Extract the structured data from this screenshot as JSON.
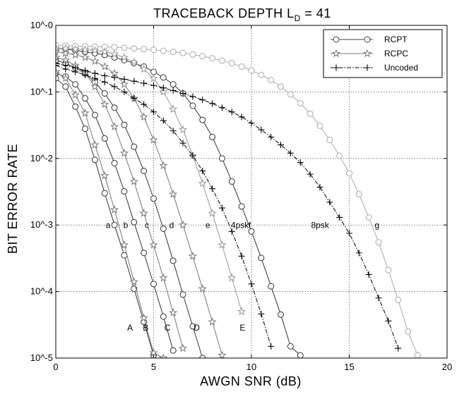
{
  "chart_data": {
    "type": "line",
    "title_prefix": "TRACEBACK DEPTH  L",
    "title_sub": "D",
    "title_suffix": " = 41",
    "xlabel": "AWGN SNR (dB)",
    "ylabel": "BIT ERROR RATE",
    "xlim": [
      0,
      20
    ],
    "ylim": [
      1e-05,
      1
    ],
    "yscale": "log",
    "grid": true,
    "legend_position": "top-right",
    "x_ticks": [
      {
        "value": 0,
        "label": "0"
      },
      {
        "value": 5,
        "label": "5"
      },
      {
        "value": 10,
        "label": "10"
      },
      {
        "value": 15,
        "label": "15"
      },
      {
        "value": 20,
        "label": "20"
      }
    ],
    "y_ticks": [
      {
        "value": 1,
        "label": "10^-0"
      },
      {
        "value": 0.1,
        "label": "10^-1"
      },
      {
        "value": 0.01,
        "label": "10^-2"
      },
      {
        "value": 0.001,
        "label": "10^-3"
      },
      {
        "value": 0.0001,
        "label": "10^-4"
      },
      {
        "value": 1e-05,
        "label": "10^-5"
      }
    ],
    "legend": [
      {
        "name": "RCPT",
        "marker": "circle",
        "color": "#444444",
        "line": "solid"
      },
      {
        "name": "RCPC",
        "marker": "star",
        "color": "#777777",
        "line": "solid"
      },
      {
        "name": "Uncoded",
        "marker": "plus",
        "color": "#000000",
        "line": "dashdot"
      }
    ],
    "series": [
      {
        "legend": "RCPT",
        "color": "#333333",
        "marker": "circle",
        "line": "solid",
        "x": [
          0,
          0.5,
          1,
          1.5,
          2,
          2.5,
          3,
          3.5,
          4,
          4.5,
          5
        ],
        "y": [
          0.16,
          0.12,
          0.06,
          0.028,
          0.0095,
          0.003,
          0.001,
          0.00035,
          0.00011,
          3.5e-05,
          1.1e-05
        ]
      },
      {
        "legend": "RCPT",
        "color": "#333333",
        "marker": "circle",
        "line": "solid",
        "x": [
          0,
          0.5,
          1,
          1.5,
          2,
          2.5,
          3,
          3.5,
          4,
          4.5,
          5,
          5.5,
          6
        ],
        "y": [
          0.19,
          0.17,
          0.13,
          0.08,
          0.045,
          0.02,
          0.0085,
          0.0032,
          0.0011,
          0.00038,
          0.00013,
          4.2e-05,
          1.3e-05
        ]
      },
      {
        "legend": "RCPT",
        "color": "#333333",
        "marker": "circle",
        "line": "solid",
        "x": [
          0,
          0.5,
          1,
          1.5,
          2,
          2.5,
          3,
          3.5,
          4,
          4.5,
          5,
          5.5,
          6,
          6.5,
          7,
          7.5
        ],
        "y": [
          0.3,
          0.27,
          0.23,
          0.19,
          0.14,
          0.095,
          0.058,
          0.032,
          0.015,
          0.0065,
          0.0025,
          0.00088,
          0.00029,
          9e-05,
          3e-05,
          1e-05
        ]
      },
      {
        "legend": "RCPT",
        "color": "#333333",
        "marker": "circle",
        "line": "solid",
        "x": [
          0,
          0.5,
          1,
          1.5,
          2,
          2.5,
          3,
          3.5,
          4,
          4.5,
          5,
          5.5,
          6,
          6.5,
          7,
          7.5,
          8,
          8.5,
          9,
          9.5,
          10,
          10.5,
          11,
          11.5,
          12,
          12.5
        ],
        "y": [
          0.45,
          0.44,
          0.42,
          0.4,
          0.38,
          0.36,
          0.33,
          0.3,
          0.27,
          0.24,
          0.2,
          0.165,
          0.13,
          0.095,
          0.062,
          0.038,
          0.021,
          0.01,
          0.0045,
          0.0019,
          0.0008,
          0.00032,
          0.00012,
          4.5e-05,
          1.5e-05,
          1.1e-05
        ]
      },
      {
        "legend": "RCPT",
        "color": "#aaaaaa",
        "marker": "circle",
        "line": "solid",
        "x": [
          0,
          0.5,
          1,
          1.5,
          2,
          2.5,
          3,
          3.5,
          4,
          4.5,
          5,
          5.5,
          6,
          6.5,
          7,
          7.5,
          8,
          8.5,
          9,
          9.5,
          10,
          10.5,
          11,
          11.5,
          12,
          12.5,
          13,
          13.5,
          14,
          14.5,
          15,
          15.5,
          16,
          16.5,
          17,
          17.5,
          18,
          18.5
        ],
        "y": [
          0.5,
          0.495,
          0.49,
          0.485,
          0.48,
          0.475,
          0.47,
          0.46,
          0.45,
          0.44,
          0.43,
          0.415,
          0.4,
          0.385,
          0.365,
          0.345,
          0.32,
          0.295,
          0.27,
          0.24,
          0.21,
          0.18,
          0.15,
          0.12,
          0.092,
          0.068,
          0.047,
          0.031,
          0.019,
          0.011,
          0.006,
          0.0029,
          0.0013,
          0.00055,
          0.00021,
          7.5e-05,
          2.5e-05,
          1.1e-05
        ]
      },
      {
        "legend": "RCPC",
        "color": "#777777",
        "marker": "star",
        "line": "solid",
        "x": [
          0,
          0.5,
          1,
          1.5,
          2,
          2.5,
          3,
          3.5,
          4,
          4.5,
          5,
          5.5
        ],
        "y": [
          0.2,
          0.16,
          0.09,
          0.048,
          0.016,
          0.0055,
          0.0017,
          0.0005,
          0.00014,
          4e-05,
          1.2e-05,
          1e-05
        ]
      },
      {
        "legend": "RCPC",
        "color": "#777777",
        "marker": "star",
        "line": "solid",
        "x": [
          0,
          0.5,
          1,
          1.5,
          2,
          2.5,
          3,
          3.5,
          4,
          4.5,
          5,
          5.5,
          6,
          6.5
        ],
        "y": [
          0.33,
          0.3,
          0.25,
          0.19,
          0.12,
          0.065,
          0.03,
          0.012,
          0.0045,
          0.0015,
          0.0005,
          0.00016,
          4.8e-05,
          1.4e-05
        ]
      },
      {
        "legend": "RCPC",
        "color": "#777777",
        "marker": "star",
        "line": "solid",
        "x": [
          0,
          0.5,
          1,
          1.5,
          2,
          2.5,
          3,
          3.5,
          4,
          4.5,
          5,
          5.5,
          6,
          6.5,
          7,
          7.5,
          8,
          8.5
        ],
        "y": [
          0.4,
          0.38,
          0.36,
          0.33,
          0.29,
          0.24,
          0.19,
          0.13,
          0.08,
          0.042,
          0.019,
          0.0078,
          0.0029,
          0.001,
          0.00034,
          0.00011,
          3.5e-05,
          1.1e-05
        ]
      },
      {
        "legend": "RCPC",
        "color": "#999999",
        "marker": "star",
        "line": "solid",
        "x": [
          0,
          0.5,
          1,
          1.5,
          2,
          2.5,
          3,
          3.5,
          4,
          4.5,
          5,
          5.5,
          6,
          6.5,
          7,
          7.5,
          8,
          8.5,
          9,
          9.5
        ],
        "y": [
          0.45,
          0.45,
          0.44,
          0.43,
          0.42,
          0.4,
          0.37,
          0.33,
          0.28,
          0.22,
          0.16,
          0.1,
          0.055,
          0.027,
          0.011,
          0.0042,
          0.0015,
          0.0005,
          0.00016,
          5e-05
        ]
      },
      {
        "legend": "Uncoded",
        "color": "#000000",
        "marker": "plus",
        "line": "dashdot",
        "x": [
          0,
          0.5,
          1,
          1.5,
          2,
          2.5,
          3,
          3.5,
          4,
          4.5,
          5,
          5.5,
          6,
          6.5,
          7,
          7.5,
          8,
          8.5,
          9,
          9.5,
          10,
          10.5,
          11
        ],
        "y": [
          0.25,
          0.22,
          0.2,
          0.18,
          0.16,
          0.14,
          0.12,
          0.1,
          0.08,
          0.065,
          0.05,
          0.037,
          0.026,
          0.017,
          0.011,
          0.0065,
          0.0035,
          0.0018,
          0.0008,
          0.00034,
          0.00013,
          4.6e-05,
          1.5e-05
        ]
      },
      {
        "legend": "Uncoded",
        "color": "#000000",
        "marker": "plus",
        "line": "dashdot",
        "x": [
          0,
          0.5,
          1,
          1.5,
          2,
          2.5,
          3,
          3.5,
          4,
          4.5,
          5,
          5.5,
          6,
          6.5,
          7,
          7.5,
          8,
          8.5,
          9,
          9.5,
          10,
          10.5,
          11,
          11.5,
          12,
          12.5,
          13,
          13.5,
          14,
          14.5,
          15,
          15.5,
          16,
          16.5,
          17,
          17.5
        ],
        "y": [
          0.27,
          0.25,
          0.23,
          0.21,
          0.19,
          0.175,
          0.165,
          0.155,
          0.145,
          0.135,
          0.125,
          0.115,
          0.105,
          0.095,
          0.085,
          0.076,
          0.067,
          0.058,
          0.05,
          0.042,
          0.034,
          0.027,
          0.021,
          0.016,
          0.012,
          0.0087,
          0.0058,
          0.0037,
          0.0022,
          0.0013,
          0.00075,
          0.00038,
          0.00018,
          8e-05,
          3.6e-05,
          1.4e-05
        ]
      }
    ],
    "annotations": [
      {
        "text": "a",
        "x": 2.55,
        "y": 0.0009
      },
      {
        "text": "b",
        "x": 3.45,
        "y": 0.0009
      },
      {
        "text": "c",
        "x": 4.55,
        "y": 0.0009
      },
      {
        "text": "d",
        "x": 5.8,
        "y": 0.0009
      },
      {
        "text": "e",
        "x": 7.65,
        "y": 0.0009
      },
      {
        "text": "4psk",
        "x": 8.95,
        "y": 0.0009
      },
      {
        "text": "f",
        "x": 9.85,
        "y": 0.0009
      },
      {
        "text": "8psk",
        "x": 13.05,
        "y": 0.0009
      },
      {
        "text": "g",
        "x": 16.3,
        "y": 0.0009
      },
      {
        "text": "A",
        "x": 3.65,
        "y": 2.6e-05
      },
      {
        "text": "B",
        "x": 4.45,
        "y": 2.6e-05
      },
      {
        "text": "C",
        "x": 5.55,
        "y": 2.6e-05
      },
      {
        "text": "D",
        "x": 7.05,
        "y": 2.6e-05
      },
      {
        "text": "E",
        "x": 9.4,
        "y": 2.6e-05
      }
    ]
  }
}
